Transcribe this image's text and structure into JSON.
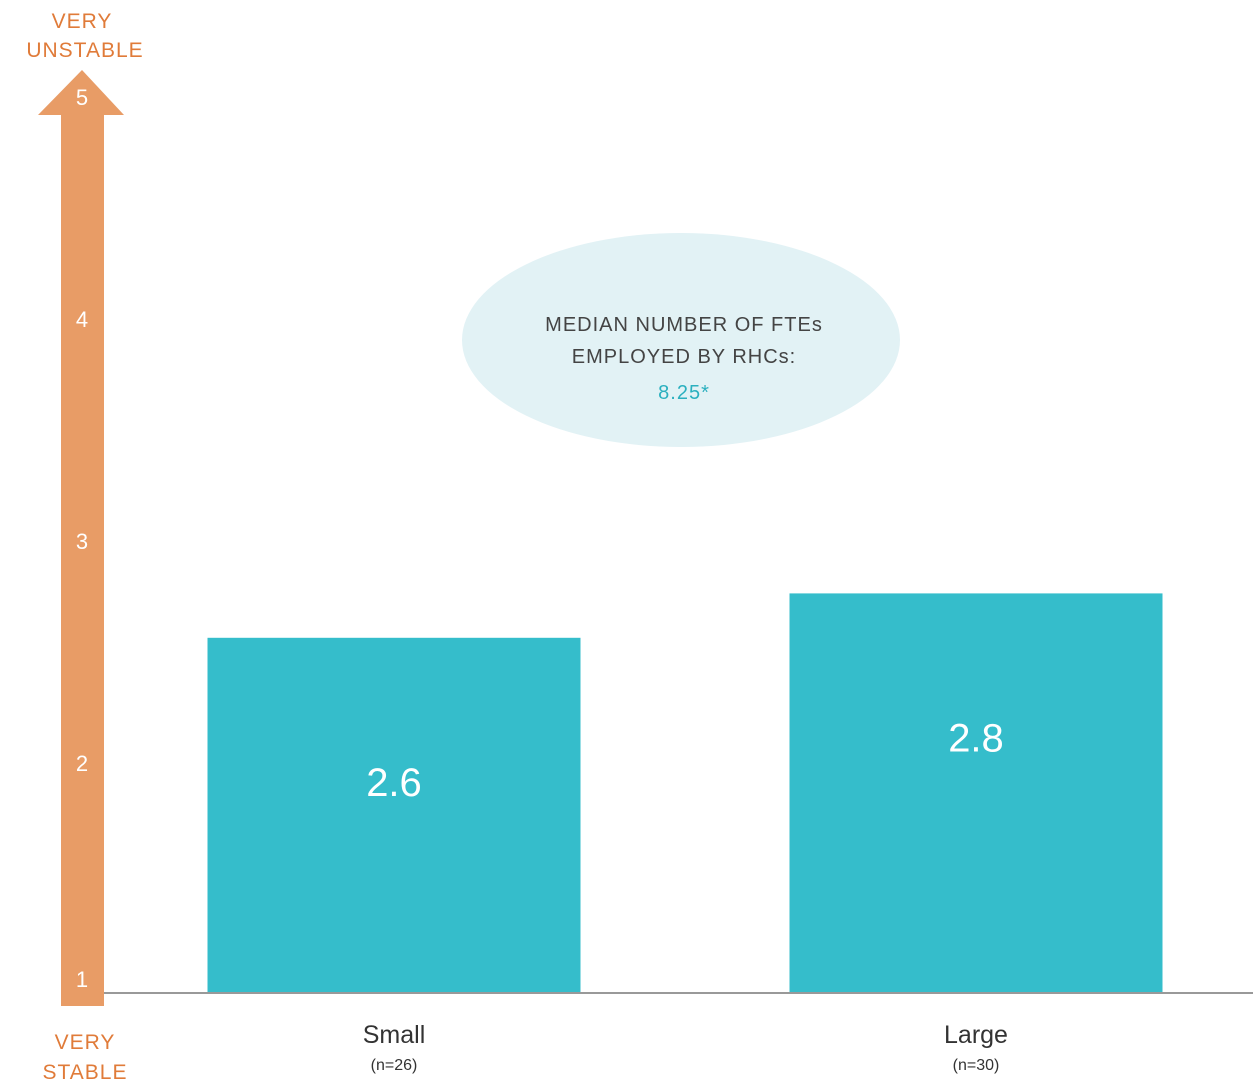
{
  "chart_data": {
    "type": "bar",
    "categories": [
      "Small",
      "Large"
    ],
    "category_notes": [
      "(n=26)",
      "(n=30)"
    ],
    "values": [
      2.6,
      2.8
    ],
    "value_labels": [
      "2.6",
      "2.8"
    ],
    "ylim": [
      1,
      5
    ],
    "yticks": [
      "1",
      "2",
      "3",
      "4",
      "5"
    ],
    "axis_top_label": [
      "VERY",
      "UNSTABLE"
    ],
    "axis_bottom_label": [
      "VERY",
      "STABLE"
    ],
    "grid": false,
    "annotation": {
      "lines": [
        "MEDIAN NUMBER OF FTEs",
        "EMPLOYED BY RHCs:"
      ],
      "value": "8.25*"
    },
    "colors": {
      "bar": "#35bdcb",
      "axis_arrow": "#e89c66",
      "axis_label": "#e07b39",
      "tick_label": "#ffffff",
      "bubble": "#e2f2f5",
      "bubble_text": "#444444",
      "bubble_value": "#2bb0bf",
      "baseline": "#999999",
      "category_text": "#333333"
    }
  }
}
